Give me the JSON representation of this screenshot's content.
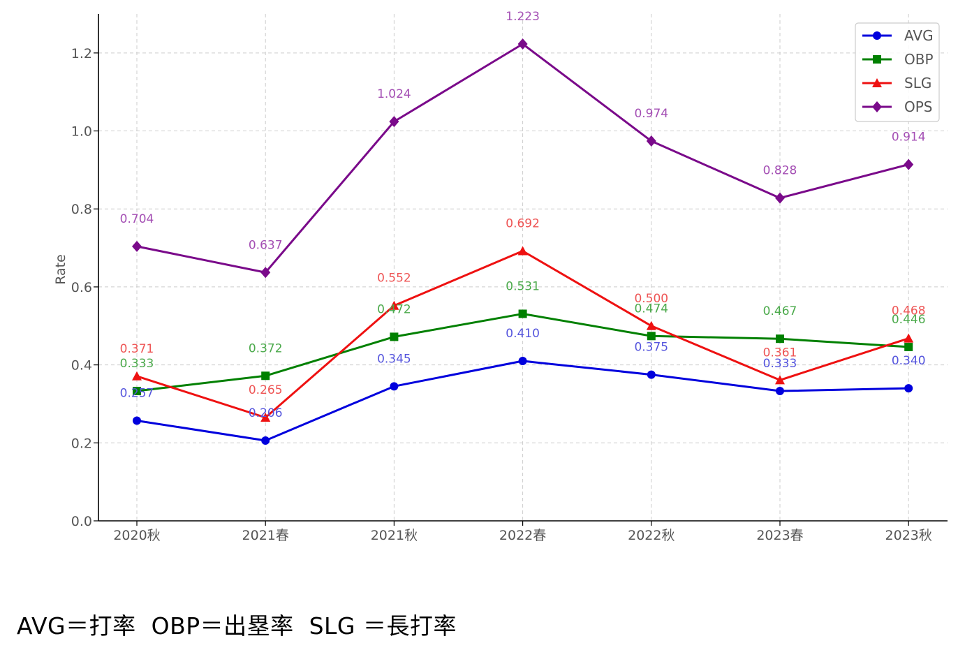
{
  "chart_data": {
    "type": "line",
    "categories": [
      "2020秋",
      "2021春",
      "2021秋",
      "2022春",
      "2022秋",
      "2023春",
      "2023秋"
    ],
    "ylabel": "Rate",
    "xlabel": "",
    "ylim": [
      0.0,
      1.3
    ],
    "yticks": [
      "0.0",
      "0.2",
      "0.4",
      "0.6",
      "0.8",
      "1.0",
      "1.2"
    ],
    "grid": true,
    "legend_position": "top-right",
    "series": [
      {
        "name": "AVG",
        "color": "#0000dd",
        "label_color": "#5555dd",
        "marker": "circle",
        "values": [
          0.257,
          0.206,
          0.345,
          0.41,
          0.375,
          0.333,
          0.34
        ],
        "labels": [
          "0.257",
          "0.206",
          "0.345",
          "0.410",
          "0.375",
          "0.333",
          "0.340"
        ]
      },
      {
        "name": "OBP",
        "color": "#008000",
        "label_color": "#4caa4c",
        "marker": "square",
        "values": [
          0.333,
          0.372,
          0.472,
          0.531,
          0.474,
          0.467,
          0.446
        ],
        "labels": [
          "0.333",
          "0.372",
          "0.472",
          "0.531",
          "0.474",
          "0.467",
          "0.446"
        ]
      },
      {
        "name": "SLG",
        "color": "#ee1111",
        "label_color": "#ee5555",
        "marker": "triangle",
        "values": [
          0.371,
          0.265,
          0.552,
          0.692,
          0.5,
          0.361,
          0.468
        ],
        "labels": [
          "0.371",
          "0.265",
          "0.552",
          "0.692",
          "0.500",
          "0.361",
          "0.468"
        ]
      },
      {
        "name": "OPS",
        "color": "#7a0a8a",
        "label_color": "#a44fb4",
        "marker": "diamond",
        "values": [
          0.704,
          0.637,
          1.024,
          1.223,
          0.974,
          0.828,
          0.914
        ],
        "labels": [
          "0.704",
          "0.637",
          "1.024",
          "1.223",
          "0.974",
          "0.828",
          "0.914"
        ]
      }
    ]
  },
  "caption": "AVG＝打率  OBP＝出塁率  SLG ＝長打率"
}
